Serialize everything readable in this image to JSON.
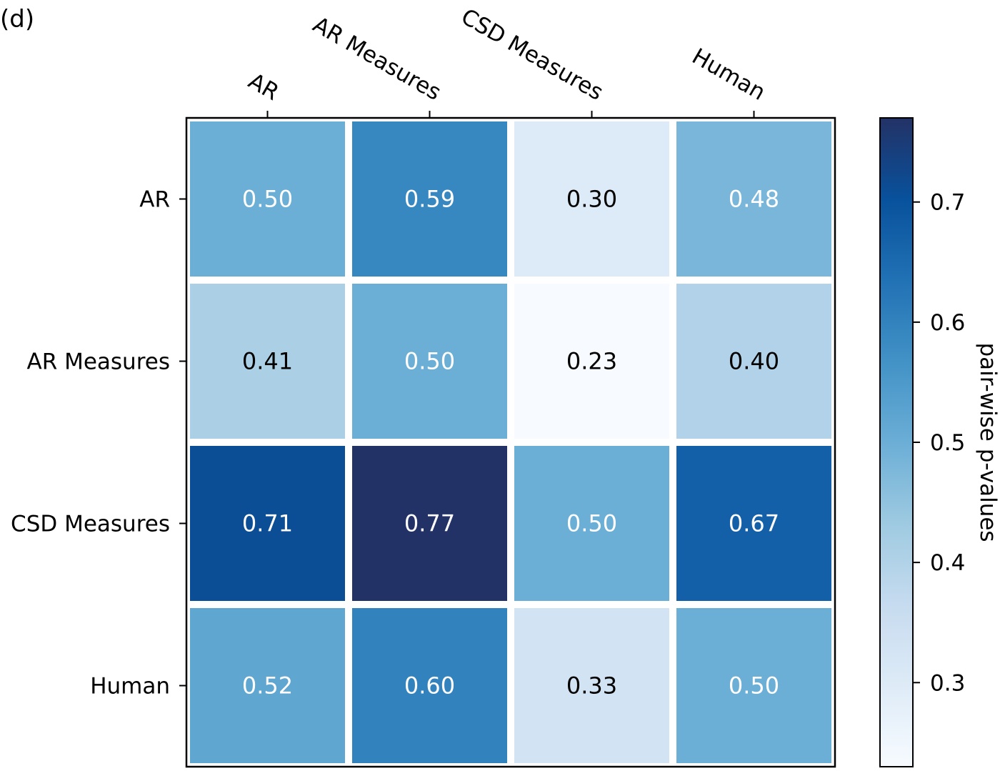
{
  "panel_label": "(d)",
  "chart_data": {
    "type": "heatmap",
    "title": "",
    "rows": [
      "AR",
      "AR Measures",
      "CSD Measures",
      "Human"
    ],
    "columns": [
      "AR",
      "AR Measures",
      "CSD Measures",
      "Human"
    ],
    "values": [
      [
        0.5,
        0.59,
        0.3,
        0.48
      ],
      [
        0.41,
        0.5,
        0.23,
        0.4
      ],
      [
        0.71,
        0.77,
        0.5,
        0.67
      ],
      [
        0.52,
        0.6,
        0.33,
        0.5
      ]
    ],
    "value_format": "0.00",
    "colormap": "Blues",
    "color_range": [
      0.23,
      0.77
    ],
    "x_tick_position": "top",
    "colorbar": {
      "label": "pair-wise p-values",
      "ticks": [
        0.3,
        0.4,
        0.5,
        0.6,
        0.7
      ],
      "tick_labels": [
        "0.3",
        "0.4",
        "0.5",
        "0.6",
        "0.7"
      ]
    },
    "grid": false
  }
}
